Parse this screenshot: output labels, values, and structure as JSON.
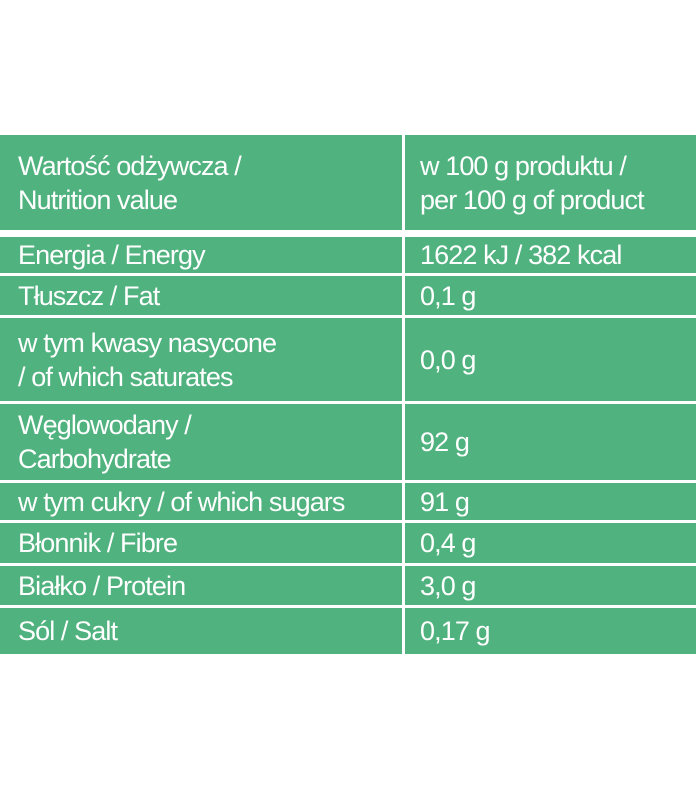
{
  "table": {
    "header": [
      [
        "Wartość odżywcza /",
        "Nutrition value"
      ],
      [
        "w 100 g produktu /",
        "per 100 g of product"
      ]
    ],
    "rows": [
      [
        [
          "Energia / Energy"
        ],
        [
          "1622 kJ / 382 kcal"
        ]
      ],
      [
        [
          "Tłuszcz / Fat"
        ],
        [
          "0,1 g"
        ]
      ],
      [
        [
          "w tym kwasy nasycone",
          "/ of which saturates"
        ],
        [
          "0,0 g"
        ]
      ],
      [
        [
          "Węglowodany /",
          "Carbohydrate"
        ],
        [
          "92 g"
        ]
      ],
      [
        [
          "w tym cukry / of which sugars"
        ],
        [
          "91 g"
        ]
      ],
      [
        [
          "Błonnik / Fibre"
        ],
        [
          "0,4 g"
        ]
      ],
      [
        [
          "Białko / Protein"
        ],
        [
          "3,0 g"
        ]
      ],
      [
        [
          "Sól / Salt"
        ],
        [
          "0,17 g"
        ]
      ]
    ]
  }
}
